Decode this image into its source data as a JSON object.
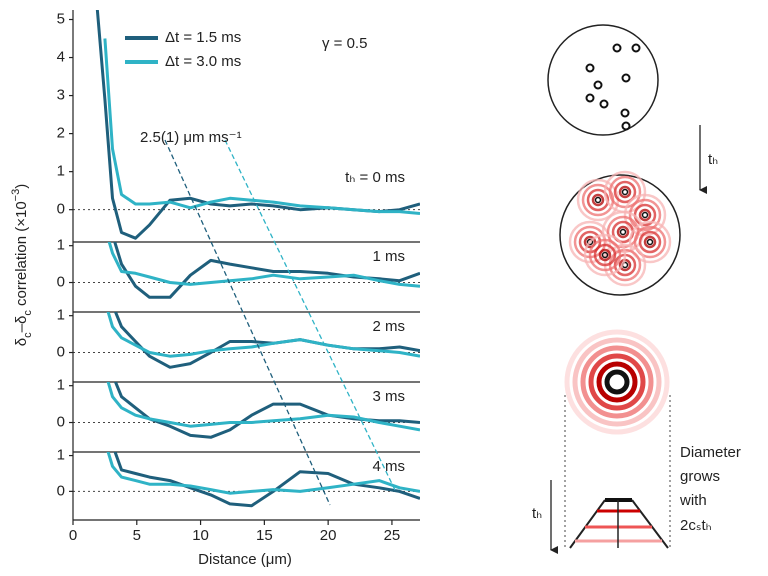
{
  "chart_data": {
    "type": "line",
    "x_label": "Distance (μm)",
    "y_label": [
      {
        "text": "δ"
      },
      {
        "text": "c",
        "shift": "sub"
      },
      {
        "text": "–δ"
      },
      {
        "text": "c",
        "shift": "sub"
      },
      {
        "text": " correlation (×10"
      },
      {
        "text": "−3",
        "shift": "super"
      },
      {
        "text": ")"
      }
    ],
    "xlim": [
      0,
      27.2
    ],
    "xticks": [
      0,
      5,
      10,
      15,
      20,
      25
    ],
    "series": [
      {
        "name": "Δt = 1.5 ms",
        "color": "#1f5f7c"
      },
      {
        "name": "Δt = 3.0 ms",
        "color": "#2fb3c6"
      }
    ],
    "annotations": {
      "gamma": "γ = 0.5",
      "velocity": "2.5(1) μm ms⁻¹"
    },
    "zero_line": "dotted",
    "panels": [
      {
        "label": "tₕ = 0 ms",
        "ylim": [
          -0.85,
          5.25
        ],
        "yticks": [
          0,
          1,
          2,
          3,
          4,
          5
        ],
        "x": [
          1.9,
          2.5,
          3.1,
          3.8,
          4.9,
          6,
          7.6,
          9.2,
          10.8,
          12.3,
          14,
          15.7,
          17.8,
          20,
          22,
          24,
          25.6,
          27.2
        ],
        "values": [
          [
            5.3,
            2.9,
            0.3,
            -0.6,
            -0.75,
            -0.4,
            0.25,
            0.3,
            0.15,
            0.1,
            0.15,
            0.1,
            0,
            0.05,
            0,
            -0.05,
            0,
            0.15
          ],
          [
            null,
            4.5,
            1.6,
            0.4,
            0.15,
            0.15,
            0.2,
            0.05,
            0.2,
            0.3,
            0.25,
            0.2,
            0.1,
            0.05,
            0,
            -0.05,
            -0.05,
            -0.1
          ]
        ]
      },
      {
        "label": "1 ms",
        "ylim": [
          -0.8,
          1.1
        ],
        "yticks": [
          0,
          1
        ],
        "x": [
          1.9,
          2.5,
          3.1,
          3.8,
          4.9,
          6,
          7.6,
          9.2,
          10.8,
          12.3,
          14,
          15.7,
          17.8,
          20,
          22,
          24,
          25.6,
          27.2
        ],
        "values": [
          [
            null,
            null,
            1.3,
            0.5,
            -0.1,
            -0.4,
            -0.4,
            0.2,
            0.6,
            0.5,
            0.4,
            0.3,
            0.3,
            0.25,
            0.15,
            0.1,
            0.05,
            0.25
          ],
          [
            null,
            1.5,
            0.8,
            0.3,
            0.25,
            0.15,
            0,
            -0.05,
            0,
            0.05,
            0.1,
            0.2,
            0.1,
            0.15,
            0.2,
            0.05,
            -0.05,
            -0.1
          ]
        ]
      },
      {
        "label": "2 ms",
        "ylim": [
          -0.8,
          1.1
        ],
        "yticks": [
          0,
          1
        ],
        "x": [
          1.9,
          2.5,
          3.1,
          3.8,
          4.9,
          6,
          7.6,
          9.2,
          10.8,
          12.3,
          14,
          15.7,
          17.8,
          20,
          22,
          24,
          25.6,
          27.2
        ],
        "values": [
          [
            null,
            null,
            1.3,
            0.7,
            0.3,
            -0.1,
            -0.4,
            -0.3,
            0,
            0.3,
            0.3,
            0.25,
            0.35,
            0.2,
            0.1,
            0.1,
            0.15,
            0.05
          ],
          [
            null,
            1.4,
            0.7,
            0.4,
            0.2,
            0,
            -0.1,
            -0.05,
            0.05,
            0.1,
            0.15,
            0.25,
            0.35,
            0.2,
            0.1,
            0.05,
            0,
            -0.1
          ]
        ]
      },
      {
        "label": "3 ms",
        "ylim": [
          -0.8,
          1.1
        ],
        "yticks": [
          0,
          1
        ],
        "x": [
          1.9,
          2.5,
          3.1,
          3.8,
          4.9,
          6,
          7.6,
          9.2,
          10.8,
          12.3,
          14,
          15.7,
          17.8,
          20,
          22,
          24,
          25.6,
          27.2
        ],
        "values": [
          [
            null,
            null,
            1.3,
            0.7,
            0.4,
            0.1,
            -0.1,
            -0.35,
            -0.4,
            -0.2,
            0.2,
            0.5,
            0.5,
            0.2,
            0.1,
            0.05,
            0.05,
            0
          ],
          [
            null,
            1.4,
            0.7,
            0.4,
            0.2,
            0.1,
            0,
            -0.1,
            -0.05,
            0,
            0,
            0.05,
            0.1,
            0.2,
            0.15,
            0,
            -0.1,
            -0.2
          ]
        ]
      },
      {
        "label": "4 ms",
        "ylim": [
          -0.8,
          1.1
        ],
        "yticks": [
          0,
          1
        ],
        "x": [
          1.9,
          2.5,
          3.1,
          3.8,
          4.9,
          6,
          7.6,
          9.2,
          10.8,
          12.3,
          14,
          15.7,
          17.8,
          20,
          22,
          24,
          25.6,
          27.2
        ],
        "values": [
          [
            null,
            null,
            1.3,
            0.6,
            0.5,
            0.4,
            0.3,
            0.1,
            -0.1,
            -0.35,
            -0.4,
            0,
            0.55,
            0.5,
            0.2,
            0.1,
            0,
            -0.2
          ],
          [
            null,
            1.4,
            0.7,
            0.4,
            0.3,
            0.2,
            0.2,
            0.15,
            0.05,
            -0.05,
            0,
            0.05,
            0,
            0.1,
            0.2,
            0.3,
            0.1,
            0
          ]
        ]
      }
    ]
  },
  "diagram": {
    "arrow_labels": [
      "tₕ",
      "tₕ"
    ],
    "caption": [
      "Diameter",
      "grows",
      "with",
      "2cₛtₕ"
    ]
  }
}
